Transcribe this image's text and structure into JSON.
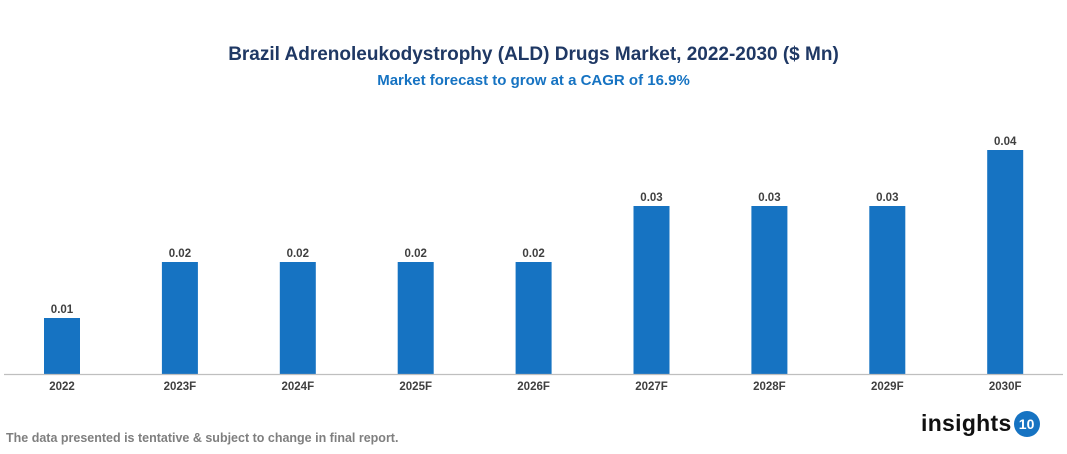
{
  "chart_data": {
    "type": "bar",
    "title": "Brazil Adrenoleukodystrophy (ALD) Drugs Market, 2022-2030 ($ Mn)",
    "subtitle": "Market forecast to grow at a CAGR of 16.9%",
    "categories": [
      "2022",
      "2023F",
      "2024F",
      "2025F",
      "2026F",
      "2027F",
      "2028F",
      "2029F",
      "2030F"
    ],
    "values": [
      0.01,
      0.02,
      0.02,
      0.02,
      0.02,
      0.03,
      0.03,
      0.03,
      0.04
    ],
    "data_labels": [
      "0.01",
      "0.02",
      "0.02",
      "0.02",
      "0.02",
      "0.03",
      "0.03",
      "0.03",
      "0.04"
    ],
    "xlabel": "",
    "ylabel": "",
    "ylim": [
      0,
      0.04
    ],
    "grid": false,
    "bar_color": "#1673c2"
  },
  "footer_note": "The data presented is tentative & subject to change in final report.",
  "logo": {
    "text": "insights",
    "badge": "10"
  }
}
